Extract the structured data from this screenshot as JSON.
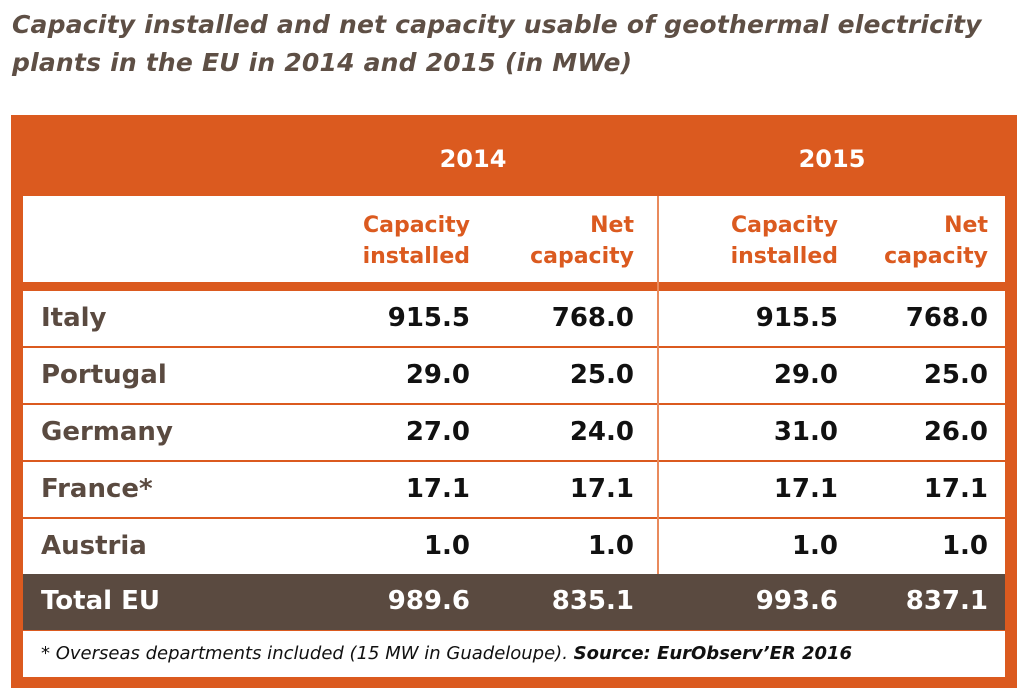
{
  "title": "Capacity installed and net capacity usable of geothermal electricity plants in the EU in 2014 and 2015 (in MWe)",
  "chart_data": {
    "type": "table",
    "title": "Capacity installed and net capacity usable of geothermal electricity plants in the EU in 2014 and 2015 (in MWe)",
    "years": [
      "2014",
      "2015"
    ],
    "columns": [
      "Capacity installed",
      "Net capacity",
      "Capacity installed",
      "Net capacity"
    ],
    "rows": [
      {
        "country": "Italy",
        "values": [
          "915.5",
          "768.0",
          "915.5",
          "768.0"
        ]
      },
      {
        "country": "Portugal",
        "values": [
          "29.0",
          "25.0",
          "29.0",
          "25.0"
        ]
      },
      {
        "country": "Germany",
        "values": [
          "27.0",
          "24.0",
          "31.0",
          "26.0"
        ]
      },
      {
        "country": "France*",
        "values": [
          "17.1",
          "17.1",
          "17.1",
          "17.1"
        ]
      },
      {
        "country": "Austria",
        "values": [
          "1.0",
          "1.0",
          "1.0",
          "1.0"
        ]
      }
    ],
    "total": {
      "country": "Total EU",
      "values": [
        "989.6",
        "835.1",
        "993.6",
        "837.1"
      ]
    },
    "footnote": "* Overseas departments included (15 MW in Guadeloupe). ",
    "source": "Source: EurObserv’ER 2016"
  },
  "colors": {
    "accent": "#db5a1f",
    "total_bg": "#5a4a40"
  }
}
